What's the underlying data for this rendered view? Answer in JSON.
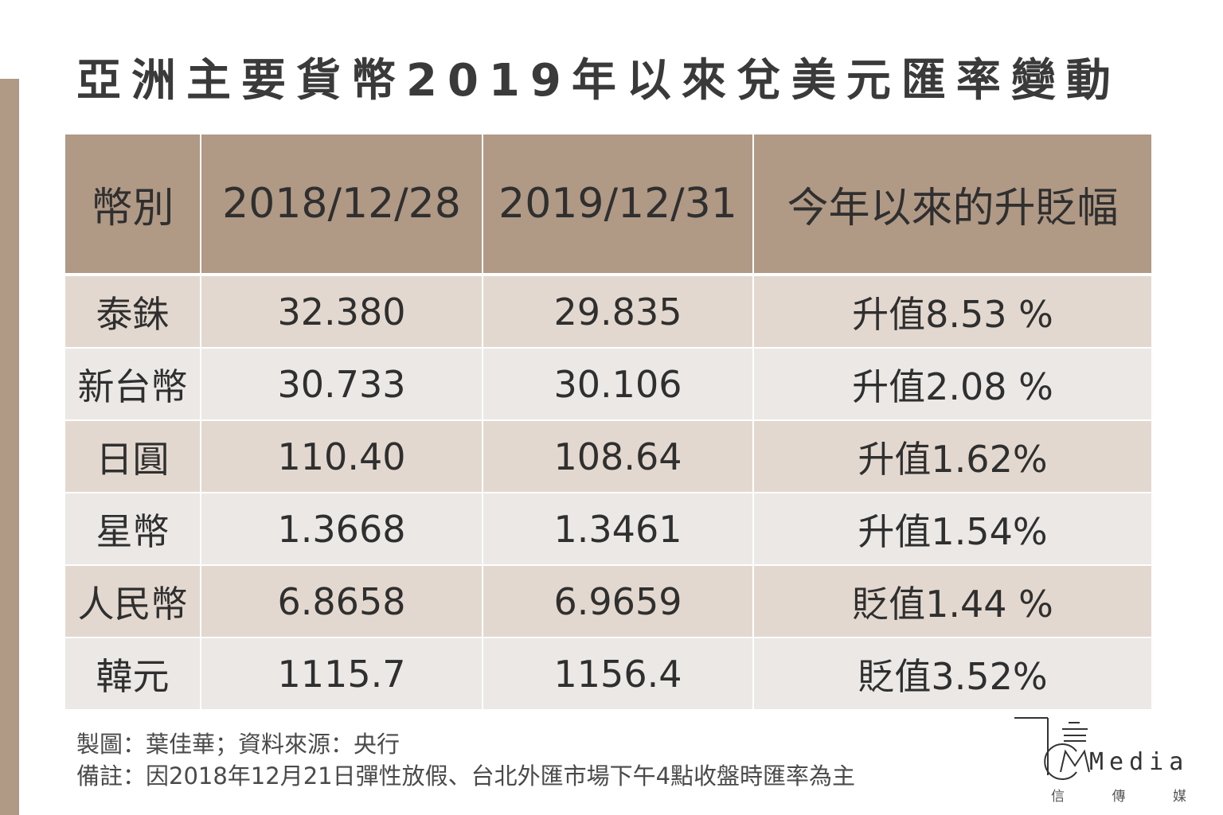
{
  "title": "亞洲主要貨幣2019年以來兌美元匯率變動",
  "chart_data": {
    "type": "table",
    "columns": [
      "幣別",
      "2018/12/28",
      "2019/12/31",
      "今年以來的升貶幅"
    ],
    "rows": [
      [
        "泰銖",
        "32.380",
        "29.835",
        "升值8.53 %"
      ],
      [
        "新台幣",
        "30.733",
        "30.106",
        "升值2.08 %"
      ],
      [
        "日圓",
        "110.40",
        "108.64",
        "升值1.62%"
      ],
      [
        "星幣",
        "1.3668",
        "1.3461",
        "升值1.54%"
      ],
      [
        "人民幣",
        "6.8658",
        "6.9659",
        "貶值1.44 %"
      ],
      [
        "韓元",
        "1115.7",
        "1156.4",
        "貶值3.52%"
      ]
    ]
  },
  "notes": {
    "source": "製圖：葉佳華；資料來源：央行",
    "remark": "備註：因2018年12月21日彈性放假、台北外匯市場下午4點收盤時匯率為主"
  },
  "logo": {
    "text": "Media",
    "sub": [
      "信",
      "傳",
      "媒"
    ]
  },
  "colors": {
    "header": "#b09985",
    "row_odd": "#e3d8cf",
    "row_even": "#ebe8e6",
    "side_bar": "#b09985"
  }
}
